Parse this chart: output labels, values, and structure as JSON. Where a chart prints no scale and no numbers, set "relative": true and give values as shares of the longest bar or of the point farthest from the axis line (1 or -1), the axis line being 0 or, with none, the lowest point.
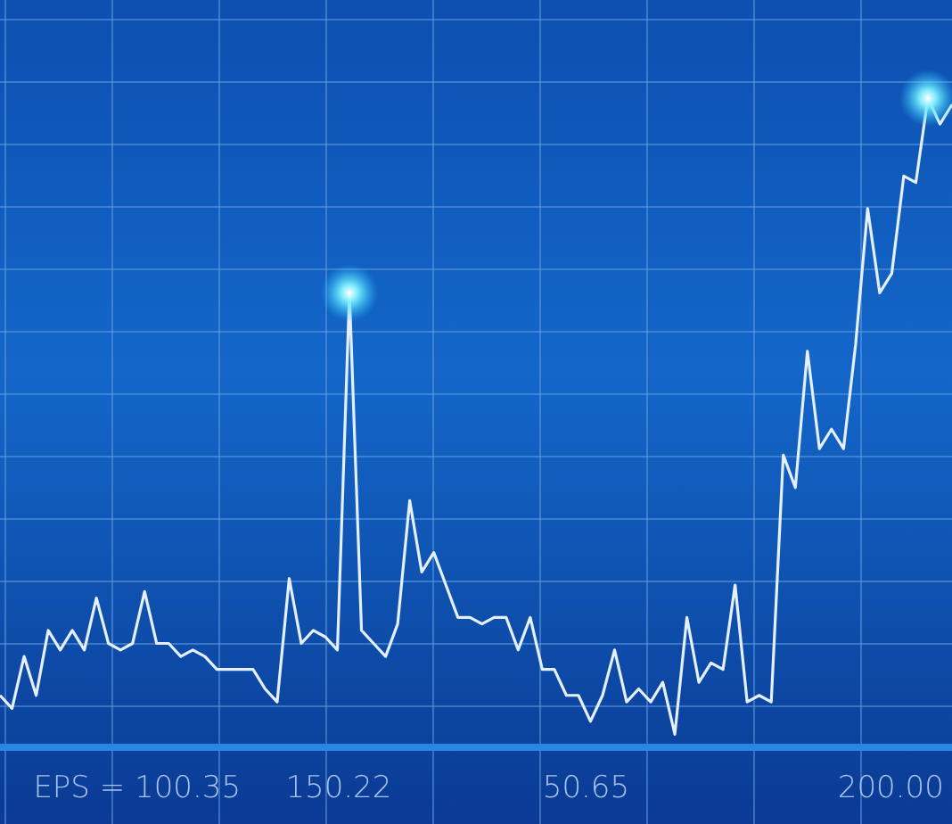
{
  "chart_data": {
    "type": "line",
    "relative": true,
    "grid": true,
    "marker": "none",
    "line_style": "solid",
    "categories": [
      null,
      null,
      null,
      null,
      null,
      null,
      null,
      null,
      null,
      null,
      null,
      null,
      null,
      null,
      null,
      null,
      null,
      null,
      null,
      null,
      null,
      null,
      null,
      null,
      null,
      null,
      null,
      null,
      null,
      null,
      null,
      null,
      null,
      null,
      null,
      null,
      null,
      null,
      null,
      null,
      null,
      null,
      null,
      null,
      null,
      null,
      null,
      null,
      null,
      null,
      null,
      null,
      null,
      null,
      null,
      null,
      null,
      null,
      null,
      null,
      null,
      null,
      null,
      null,
      null,
      null,
      null,
      null,
      null,
      null,
      null,
      null,
      null,
      null,
      null,
      null,
      null,
      null,
      null,
      null
    ],
    "series": [
      {
        "color": "#e4f0ff",
        "values": [
          0.08,
          0.06,
          0.14,
          0.08,
          0.18,
          0.15,
          0.18,
          0.15,
          0.23,
          0.16,
          0.15,
          0.16,
          0.24,
          0.16,
          0.16,
          0.14,
          0.15,
          0.14,
          0.12,
          0.12,
          0.12,
          0.12,
          0.09,
          0.07,
          0.26,
          0.16,
          0.18,
          0.17,
          0.15,
          0.7,
          0.18,
          0.16,
          0.14,
          0.19,
          0.38,
          0.27,
          0.3,
          0.25,
          0.2,
          0.2,
          0.19,
          0.2,
          0.2,
          0.15,
          0.2,
          0.12,
          0.12,
          0.08,
          0.08,
          0.04,
          0.08,
          0.15,
          0.07,
          0.09,
          0.07,
          0.1,
          0.02,
          0.2,
          0.1,
          0.13,
          0.12,
          0.25,
          0.07,
          0.08,
          0.07,
          0.45,
          0.4,
          0.61,
          0.46,
          0.49,
          0.46,
          0.62,
          0.83,
          0.7,
          0.73,
          0.88,
          0.87,
          1,
          0.96,
          0.99
        ]
      }
    ],
    "annotations": [
      "EPS = 100.35",
      "150.22",
      "50.65",
      "200.00"
    ]
  }
}
